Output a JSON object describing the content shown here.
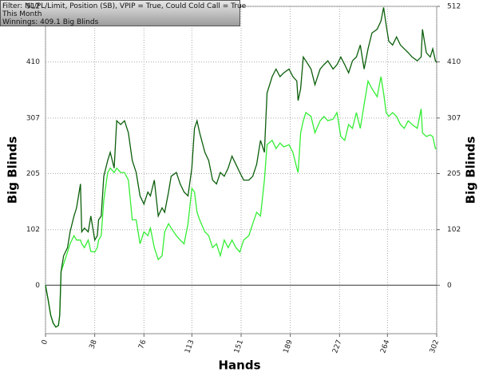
{
  "chart_data": {
    "type": "line",
    "filter": "Filter: NL/PL/Limit, Position (SB), VPIP = True, Could Cold Call = True",
    "period": "This Month",
    "summary": "Winnings: 409.1 Big Blinds",
    "xlabel": "Hands",
    "ylabel": "Big Blinds",
    "y2label": "Big Blinds",
    "x": [
      0,
      2,
      4,
      6,
      8,
      10,
      11,
      12,
      14,
      17,
      19,
      22,
      24,
      27,
      28,
      30,
      33,
      35,
      38,
      40,
      41,
      43,
      45,
      48,
      50,
      53,
      55,
      58,
      61,
      64,
      67,
      70,
      73,
      76,
      79,
      81,
      84,
      87,
      90,
      92,
      95,
      97,
      101,
      104,
      107,
      110,
      113,
      115,
      117,
      119,
      123,
      126,
      129,
      132,
      135,
      138,
      141,
      144,
      147,
      150,
      153,
      157,
      160,
      163,
      166,
      169,
      171,
      175,
      178,
      181,
      184,
      188,
      191,
      194,
      195,
      197,
      199,
      201,
      205,
      208,
      212,
      215,
      218,
      222,
      225,
      228,
      231,
      234,
      237,
      240,
      243,
      246,
      249,
      252,
      256,
      259,
      261,
      263,
      265,
      268,
      271,
      274,
      277,
      280,
      283,
      287,
      290,
      291,
      294,
      297,
      299,
      301,
      302
    ],
    "series": [
      {
        "color": "#0b5e0b",
        "values": [
          0,
          -26,
          -55,
          -70,
          -77,
          -74,
          -55,
          25,
          54,
          69,
          98,
          127,
          142,
          186,
          98,
          105,
          98,
          127,
          83,
          91,
          120,
          127,
          200,
          229,
          244,
          215,
          302,
          295,
          302,
          280,
          229,
          207,
          164,
          149,
          171,
          164,
          193,
          127,
          142,
          134,
          171,
          200,
          207,
          186,
          171,
          164,
          215,
          288,
          302,
          280,
          244,
          229,
          193,
          186,
          207,
          200,
          215,
          237,
          222,
          207,
          193,
          193,
          200,
          222,
          266,
          244,
          353,
          383,
          397,
          383,
          390,
          397,
          383,
          375,
          339,
          361,
          419,
          412,
          397,
          368,
          397,
          405,
          412,
          397,
          405,
          419,
          405,
          390,
          412,
          419,
          441,
          397,
          434,
          463,
          470,
          485,
          510,
          478,
          448,
          441,
          456,
          441,
          434,
          427,
          419,
          412,
          419,
          470,
          427,
          419,
          434,
          412,
          409
        ]
      },
      {
        "color": "#33ee33",
        "values": [
          0,
          -26,
          -55,
          -70,
          -77,
          -74,
          -55,
          25,
          39,
          61,
          76,
          91,
          83,
          83,
          76,
          69,
          83,
          62,
          61,
          69,
          83,
          91,
          156,
          207,
          215,
          207,
          215,
          207,
          207,
          193,
          120,
          120,
          76,
          98,
          91,
          105,
          69,
          47,
          54,
          98,
          113,
          105,
          91,
          83,
          76,
          113,
          178,
          171,
          134,
          120,
          98,
          91,
          69,
          76,
          54,
          83,
          69,
          83,
          69,
          61,
          83,
          91,
          113,
          134,
          127,
          193,
          258,
          266,
          251,
          261,
          254,
          258,
          244,
          215,
          207,
          280,
          302,
          317,
          310,
          280,
          302,
          310,
          302,
          305,
          317,
          273,
          266,
          295,
          288,
          317,
          288,
          332,
          375,
          361,
          346,
          383,
          353,
          317,
          310,
          317,
          310,
          295,
          288,
          302,
          295,
          288,
          324,
          280,
          273,
          276,
          273,
          251,
          251
        ]
      }
    ],
    "xlim": [
      0,
      302
    ],
    "xticks": [
      0,
      38,
      76,
      113,
      151,
      189,
      227,
      264,
      302
    ],
    "ylim": [
      -89,
      512
    ],
    "yticks": [
      0,
      102,
      205,
      307,
      410,
      512
    ],
    "y2lim": [
      -89,
      512
    ],
    "y2ticks": [
      0,
      102,
      205,
      307,
      410,
      512
    ],
    "grid": true
  }
}
